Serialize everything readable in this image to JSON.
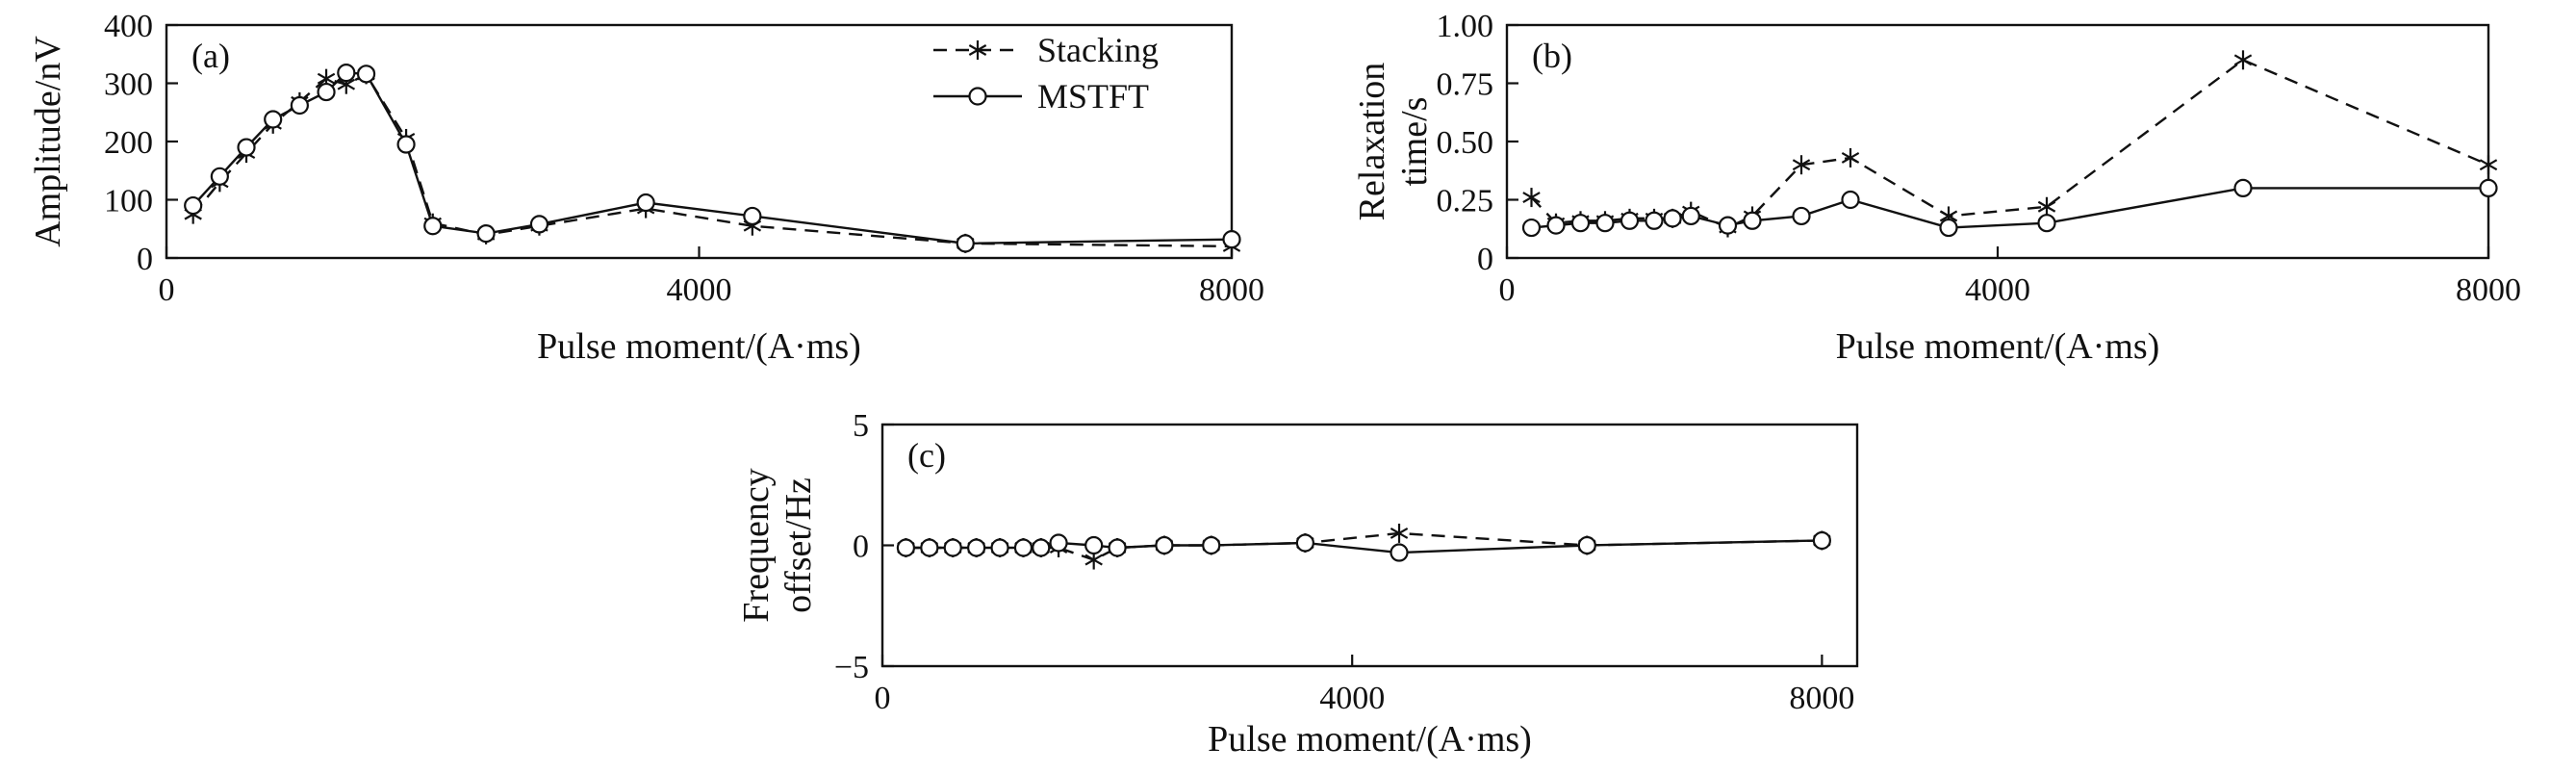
{
  "figure": {
    "background": "#ffffff",
    "ink_color": "#111111",
    "legend": {
      "items": [
        {
          "label": "Stacking",
          "marker": "asterisk-icon",
          "line": "dashed"
        },
        {
          "label": "MSTFT",
          "marker": "circle-icon",
          "line": "solid"
        }
      ]
    }
  },
  "chart_data": [
    {
      "id": "a",
      "type": "line",
      "panel_label": "(a)",
      "xlabel": "Pulse moment/(A·ms)",
      "ylabel_lines": [
        "Amplitude/nV"
      ],
      "xlim": [
        0,
        8000
      ],
      "ylim": [
        0,
        400
      ],
      "xticks": {
        "values": [
          0,
          4000,
          8000
        ],
        "labels": [
          "0",
          "4000",
          "8000"
        ]
      },
      "yticks": {
        "values": [
          0,
          100,
          200,
          300,
          400
        ],
        "labels": [
          "0",
          "100",
          "200",
          "300",
          "400"
        ]
      },
      "x": [
        200,
        400,
        600,
        800,
        1000,
        1200,
        1350,
        1500,
        1800,
        2000,
        2400,
        2800,
        3600,
        4400,
        6000,
        8000
      ],
      "series": [
        {
          "name": "Stacking",
          "marker": "asterisk",
          "line": "dashed",
          "values": [
            75,
            130,
            180,
            230,
            268,
            308,
            298,
            315,
            205,
            60,
            40,
            55,
            85,
            55,
            25,
            20
          ]
        },
        {
          "name": "MSTFT",
          "marker": "circle",
          "line": "solid",
          "values": [
            90,
            140,
            190,
            238,
            262,
            285,
            318,
            316,
            195,
            55,
            42,
            58,
            95,
            72,
            25,
            32
          ]
        }
      ],
      "legend_in_panel": true
    },
    {
      "id": "b",
      "type": "line",
      "panel_label": "(b)",
      "xlabel": "Pulse moment/(A·ms)",
      "ylabel_lines": [
        "Relaxation",
        "time/s"
      ],
      "xlim": [
        0,
        8000
      ],
      "ylim": [
        0,
        1.0
      ],
      "xticks": {
        "values": [
          0,
          4000,
          8000
        ],
        "labels": [
          "0",
          "4000",
          "8000"
        ]
      },
      "yticks": {
        "values": [
          0,
          0.25,
          0.5,
          0.75,
          1.0
        ],
        "labels": [
          "0",
          "0.25",
          "0.50",
          "0.75",
          "1.00"
        ]
      },
      "x": [
        200,
        400,
        600,
        800,
        1000,
        1200,
        1350,
        1500,
        1800,
        2000,
        2400,
        2800,
        3600,
        4400,
        6000,
        8000
      ],
      "series": [
        {
          "name": "Stacking",
          "marker": "asterisk",
          "line": "dashed",
          "values": [
            0.26,
            0.15,
            0.16,
            0.16,
            0.17,
            0.17,
            0.17,
            0.2,
            0.13,
            0.18,
            0.4,
            0.43,
            0.18,
            0.22,
            0.85,
            0.4
          ]
        },
        {
          "name": "MSTFT",
          "marker": "circle",
          "line": "solid",
          "values": [
            0.13,
            0.14,
            0.15,
            0.15,
            0.16,
            0.16,
            0.17,
            0.18,
            0.14,
            0.16,
            0.18,
            0.25,
            0.13,
            0.15,
            0.3,
            0.3
          ]
        }
      ],
      "legend_in_panel": false
    },
    {
      "id": "c",
      "type": "line",
      "panel_label": "(c)",
      "xlabel": "Pulse moment/(A·ms)",
      "ylabel_lines": [
        "Frequency",
        "offset/Hz"
      ],
      "xlim": [
        0,
        8300
      ],
      "ylim": [
        -5,
        5
      ],
      "xticks": {
        "values": [
          0,
          4000,
          8000
        ],
        "labels": [
          "0",
          "4000",
          "8000"
        ]
      },
      "yticks": {
        "values": [
          -5,
          0,
          5
        ],
        "labels": [
          "−5",
          "0",
          "5"
        ]
      },
      "x": [
        200,
        400,
        600,
        800,
        1000,
        1200,
        1350,
        1500,
        1800,
        2000,
        2400,
        2800,
        3600,
        4400,
        6000,
        8000
      ],
      "series": [
        {
          "name": "Stacking",
          "marker": "asterisk",
          "line": "dashed",
          "values": [
            -0.1,
            -0.1,
            -0.1,
            -0.1,
            -0.1,
            -0.1,
            -0.1,
            -0.1,
            -0.6,
            -0.1,
            0.0,
            0.0,
            0.1,
            0.5,
            0.0,
            0.2
          ]
        },
        {
          "name": "MSTFT",
          "marker": "circle",
          "line": "solid",
          "values": [
            -0.1,
            -0.1,
            -0.1,
            -0.1,
            -0.1,
            -0.1,
            -0.1,
            0.1,
            0.0,
            -0.1,
            0.0,
            0.0,
            0.1,
            -0.3,
            0.0,
            0.2
          ]
        }
      ],
      "legend_in_panel": false
    }
  ]
}
